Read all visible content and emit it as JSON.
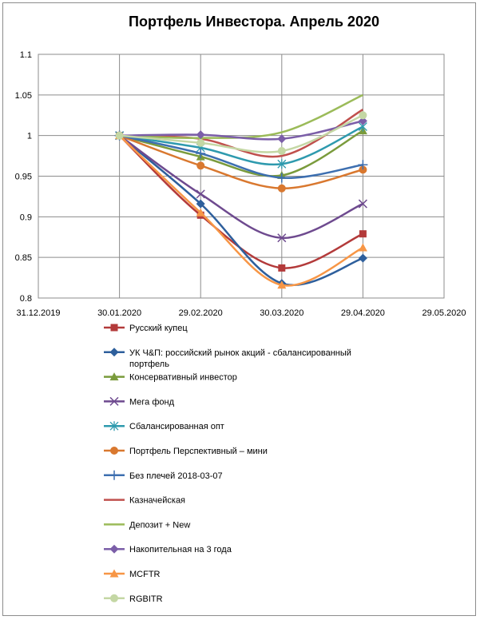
{
  "chart_data": {
    "type": "line",
    "title": "Портфель Инвестора. Апрель 2020",
    "xlabel": "",
    "ylabel": "",
    "x_ticks": [
      "31.12.2019",
      "30.01.2020",
      "29.02.2020",
      "30.03.2020",
      "29.04.2020",
      "29.05.2020"
    ],
    "y_ticks": [
      "0.8",
      "0.85",
      "0.9",
      "0.95",
      "1",
      "1.05",
      "1.1"
    ],
    "ylim": [
      0.8,
      1.1
    ],
    "x": [
      "30.01.2020",
      "29.02.2020",
      "30.03.2020",
      "29.04.2020"
    ],
    "grid": true,
    "legend_position": "bottom",
    "series": [
      {
        "name": "Русский купец",
        "color": "#b33a3a",
        "marker": "square",
        "values": [
          1.0,
          0.902,
          0.837,
          0.879
        ]
      },
      {
        "name": "УК Ч&П: российский рынок акций - сбалансированный портфель",
        "color": "#2e5f9c",
        "marker": "diamond",
        "values": [
          1.0,
          0.916,
          0.818,
          0.849
        ]
      },
      {
        "name": "Консервативный инвестор",
        "color": "#7a9b3c",
        "marker": "triangle",
        "values": [
          1.0,
          0.974,
          0.951,
          1.006
        ]
      },
      {
        "name": "Мега фонд",
        "color": "#6e4a8f",
        "marker": "x",
        "values": [
          1.0,
          0.928,
          0.874,
          0.916
        ]
      },
      {
        "name": "Сбалансированная опт",
        "color": "#2e9aae",
        "marker": "star",
        "values": [
          1.0,
          0.985,
          0.965,
          1.011
        ]
      },
      {
        "name": "Портфель Перспективный – мини",
        "color": "#d9782f",
        "marker": "circle",
        "values": [
          1.0,
          0.963,
          0.935,
          0.958
        ]
      },
      {
        "name": "Без плечей 2018-03-07",
        "color": "#3d6fb0",
        "marker": "plus",
        "values": [
          1.0,
          0.978,
          0.948,
          0.964
        ]
      },
      {
        "name": "Казначейская",
        "color": "#c0504d",
        "marker": "none",
        "values": [
          1.0,
          0.996,
          0.975,
          1.032
        ]
      },
      {
        "name": "Депозит + New",
        "color": "#9bbb59",
        "marker": "none",
        "values": [
          1.0,
          0.997,
          1.004,
          1.05
        ]
      },
      {
        "name": "Накопительная на 3 года",
        "color": "#7b5ea8",
        "marker": "diamond",
        "values": [
          1.0,
          1.001,
          0.996,
          1.018
        ]
      },
      {
        "name": "MCFTR",
        "color": "#f79646",
        "marker": "triangle",
        "values": [
          1.0,
          0.905,
          0.816,
          0.862
        ]
      },
      {
        "name": "RGBITR",
        "color": "#c4d7a4",
        "marker": "circle",
        "values": [
          1.0,
          0.991,
          0.981,
          1.025
        ]
      }
    ]
  }
}
